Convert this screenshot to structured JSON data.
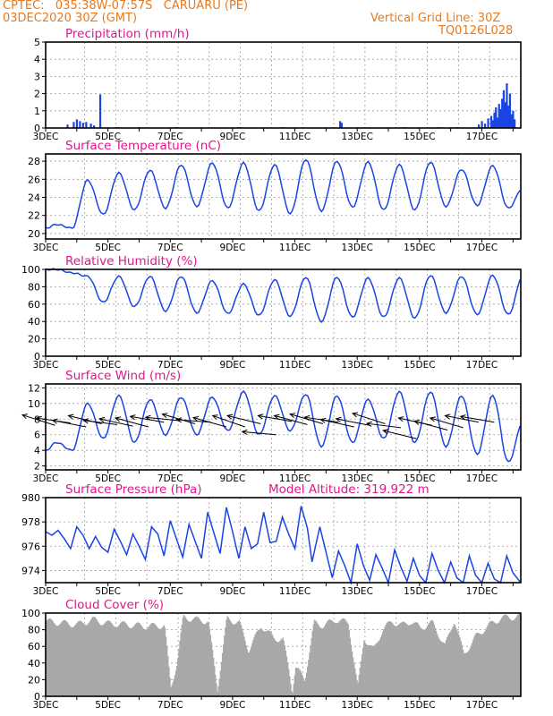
{
  "header": {
    "line1": "CPTEC:   035:38W-07:57S   CARUARU (PE)",
    "line2": "03DEC2020 30Z (GMT)",
    "right1": "Vertical Grid Line: 30Z",
    "right2": "TQ0126L028"
  },
  "colors": {
    "header": "#e8791c",
    "title": "#e0178c",
    "series": "#1a44e6",
    "cloud": "#a8a8a8",
    "wind": "#000000"
  },
  "x_ticks": [
    "3DEC",
    "5DEC",
    "7DEC",
    "9DEC",
    "11DEC",
    "13DEC",
    "15DEC",
    "17DEC"
  ],
  "chart_data": [
    {
      "type": "bar",
      "title": "Precipitation (mm/h)",
      "ylim": [
        0,
        5
      ],
      "yticks": [
        0,
        1,
        2,
        3,
        4,
        5
      ],
      "x_range_days": [
        3.0,
        18.25
      ],
      "bars": [
        [
          3.7,
          0.2
        ],
        [
          3.9,
          0.35
        ],
        [
          4.0,
          0.5
        ],
        [
          4.1,
          0.4
        ],
        [
          4.2,
          0.3
        ],
        [
          4.3,
          0.35
        ],
        [
          4.45,
          0.25
        ],
        [
          4.55,
          0.15
        ],
        [
          4.75,
          1.95
        ],
        [
          5.3,
          0.05
        ],
        [
          6.0,
          0.05
        ],
        [
          7.2,
          0.05
        ],
        [
          9.2,
          0.05
        ],
        [
          10.6,
          0.05
        ],
        [
          12.45,
          0.4
        ],
        [
          12.5,
          0.3
        ],
        [
          14.5,
          0.05
        ],
        [
          15.6,
          0.05
        ],
        [
          16.2,
          0.05
        ],
        [
          16.9,
          0.2
        ],
        [
          17.0,
          0.4
        ],
        [
          17.1,
          0.25
        ],
        [
          17.2,
          0.55
        ],
        [
          17.3,
          0.7
        ],
        [
          17.35,
          0.45
        ],
        [
          17.4,
          0.9
        ],
        [
          17.45,
          1.2
        ],
        [
          17.5,
          0.6
        ],
        [
          17.55,
          1.4
        ],
        [
          17.6,
          1.1
        ],
        [
          17.65,
          1.7
        ],
        [
          17.7,
          2.2
        ],
        [
          17.75,
          1.5
        ],
        [
          17.8,
          2.6
        ],
        [
          17.85,
          1.3
        ],
        [
          17.9,
          2.0
        ],
        [
          17.95,
          0.8
        ],
        [
          18.0,
          1.0
        ],
        [
          18.05,
          0.5
        ]
      ]
    },
    {
      "type": "line",
      "title": "Surface Temperature (nC)",
      "ylim": [
        19.4,
        28.8
      ],
      "yticks": [
        20,
        22,
        24,
        26,
        28
      ],
      "x_range_days": [
        3.0,
        18.25
      ],
      "start_value": 20.6,
      "days": [
        3,
        4,
        5,
        6,
        7,
        8,
        9,
        10,
        11,
        12,
        13,
        14,
        15,
        16,
        17,
        18
      ],
      "max": [
        21.0,
        25.9,
        26.7,
        27.0,
        27.6,
        27.8,
        27.8,
        27.6,
        28.2,
        28.0,
        27.9,
        27.6,
        27.9,
        27.1,
        27.5,
        25.2
      ],
      "min": [
        20.6,
        22.1,
        22.6,
        22.8,
        23.0,
        22.8,
        22.5,
        22.2,
        22.5,
        22.9,
        22.6,
        22.6,
        23.0,
        23.1,
        22.8,
        22.7
      ]
    },
    {
      "type": "line",
      "title": "Relative Humidity (%)",
      "ylim": [
        0,
        100
      ],
      "yticks": [
        0,
        20,
        40,
        60,
        80,
        100
      ],
      "x_range_days": [
        3.0,
        18.25
      ],
      "start_value": 100,
      "days": [
        3,
        4,
        5,
        6,
        7,
        8,
        9,
        10,
        11,
        12,
        13,
        14,
        15,
        16,
        17,
        18
      ],
      "max": [
        100,
        92,
        92,
        92,
        92,
        87,
        83,
        88,
        91,
        91,
        90,
        90,
        93,
        92,
        93,
        96
      ],
      "min": [
        96,
        62,
        57,
        52,
        50,
        49,
        47,
        46,
        40,
        45,
        45,
        44,
        50,
        48,
        48,
        67
      ]
    },
    {
      "type": "line",
      "title": "Surface Wind (m/s)",
      "ylim": [
        1.5,
        12.5
      ],
      "yticks": [
        2,
        4,
        6,
        8,
        10,
        12
      ],
      "x_range_days": [
        3.0,
        18.25
      ],
      "start_value": 4.0,
      "days": [
        3,
        4,
        5,
        6,
        7,
        8,
        9,
        10,
        11,
        12,
        13,
        14,
        15,
        16,
        17,
        18
      ],
      "max": [
        5.0,
        10.0,
        11.0,
        10.5,
        10.8,
        10.8,
        11.5,
        11.0,
        11.2,
        11.0,
        10.5,
        11.5,
        11.5,
        11.0,
        11.0,
        8.0
      ],
      "min": [
        4.0,
        5.5,
        5.0,
        6.0,
        6.0,
        6.5,
        6.0,
        6.5,
        4.5,
        5.0,
        5.5,
        5.0,
        4.5,
        3.5,
        2.5,
        5.5
      ],
      "wind_arrows": [
        [
          3.3,
          7.2,
          -110
        ],
        [
          3.8,
          7.5,
          -40
        ],
        [
          4.3,
          7.0,
          -60
        ],
        [
          4.8,
          7.4,
          -80
        ],
        [
          5.3,
          7.3,
          -30
        ],
        [
          5.8,
          7.1,
          -70
        ],
        [
          6.3,
          7.0,
          -90
        ],
        [
          6.8,
          7.6,
          -50
        ],
        [
          7.3,
          7.8,
          -20
        ],
        [
          7.8,
          7.4,
          -100
        ],
        [
          8.3,
          7.6,
          -10
        ],
        [
          8.8,
          7.0,
          -95
        ],
        [
          9.4,
          7.0,
          -120
        ],
        [
          9.9,
          7.4,
          -80
        ],
        [
          10.4,
          6.0,
          -15
        ],
        [
          10.9,
          7.7,
          -50
        ],
        [
          11.4,
          7.3,
          -90
        ],
        [
          11.9,
          7.4,
          -100
        ],
        [
          12.4,
          7.6,
          -40
        ],
        [
          12.9,
          7.0,
          -70
        ],
        [
          13.4,
          7.2,
          -60
        ],
        [
          13.9,
          7.4,
          -110
        ],
        [
          14.4,
          6.9,
          -30
        ],
        [
          14.9,
          5.5,
          -80
        ],
        [
          15.4,
          7.2,
          -70
        ],
        [
          15.9,
          6.6,
          -90
        ],
        [
          16.4,
          6.9,
          -100
        ],
        [
          16.9,
          7.6,
          -60
        ],
        [
          17.4,
          7.6,
          -50
        ]
      ]
    },
    {
      "type": "line",
      "title": "Surface Pressure (hPa)",
      "annotation": "Model Altitude: 319.922  m",
      "ylim": [
        973.0,
        980.0
      ],
      "yticks": [
        974,
        976,
        978,
        980
      ],
      "x_range_days": [
        3.0,
        18.25
      ],
      "points": [
        [
          3.0,
          977.2
        ],
        [
          3.2,
          976.9
        ],
        [
          3.4,
          977.3
        ],
        [
          3.6,
          976.6
        ],
        [
          3.8,
          975.8
        ],
        [
          4.0,
          977.6
        ],
        [
          4.2,
          976.9
        ],
        [
          4.4,
          975.8
        ],
        [
          4.6,
          976.8
        ],
        [
          4.8,
          975.9
        ],
        [
          5.0,
          975.5
        ],
        [
          5.2,
          977.4
        ],
        [
          5.4,
          976.4
        ],
        [
          5.6,
          975.3
        ],
        [
          5.8,
          977.0
        ],
        [
          6.0,
          976.0
        ],
        [
          6.2,
          974.9
        ],
        [
          6.4,
          977.6
        ],
        [
          6.6,
          977.0
        ],
        [
          6.8,
          975.2
        ],
        [
          7.0,
          978.1
        ],
        [
          7.2,
          976.6
        ],
        [
          7.4,
          975.1
        ],
        [
          7.6,
          977.8
        ],
        [
          7.8,
          976.4
        ],
        [
          8.0,
          975.0
        ],
        [
          8.2,
          978.8
        ],
        [
          8.4,
          977.1
        ],
        [
          8.6,
          975.4
        ],
        [
          8.8,
          979.2
        ],
        [
          9.0,
          977.2
        ],
        [
          9.2,
          975.0
        ],
        [
          9.4,
          977.6
        ],
        [
          9.6,
          975.8
        ],
        [
          9.8,
          976.2
        ],
        [
          10.0,
          978.8
        ],
        [
          10.2,
          976.3
        ],
        [
          10.4,
          976.4
        ],
        [
          10.6,
          978.4
        ],
        [
          10.8,
          977.0
        ],
        [
          11.0,
          975.8
        ],
        [
          11.2,
          979.3
        ],
        [
          11.4,
          977.5
        ],
        [
          11.55,
          974.7
        ],
        [
          11.8,
          977.6
        ],
        [
          12.0,
          975.5
        ],
        [
          12.2,
          973.4
        ],
        [
          12.4,
          975.6
        ],
        [
          12.6,
          974.4
        ],
        [
          12.8,
          973.0
        ],
        [
          13.0,
          976.2
        ],
        [
          13.2,
          974.4
        ],
        [
          13.4,
          973.2
        ],
        [
          13.6,
          975.3
        ],
        [
          13.8,
          974.2
        ],
        [
          14.0,
          973.0
        ],
        [
          14.2,
          975.7
        ],
        [
          14.4,
          974.3
        ],
        [
          14.6,
          973.1
        ],
        [
          14.8,
          975.0
        ],
        [
          15.0,
          973.6
        ],
        [
          15.2,
          973.0
        ],
        [
          15.4,
          975.4
        ],
        [
          15.6,
          974.0
        ],
        [
          15.8,
          973.0
        ],
        [
          16.0,
          974.7
        ],
        [
          16.2,
          973.4
        ],
        [
          16.4,
          973.0
        ],
        [
          16.6,
          975.2
        ],
        [
          16.8,
          973.6
        ],
        [
          17.0,
          973.0
        ],
        [
          17.2,
          974.6
        ],
        [
          17.4,
          973.3
        ],
        [
          17.6,
          973.0
        ],
        [
          17.8,
          975.2
        ],
        [
          18.0,
          973.8
        ],
        [
          18.25,
          973.0
        ]
      ]
    },
    {
      "type": "bar",
      "title": "Cloud Cover (%)",
      "ylim": [
        0,
        100
      ],
      "yticks": [
        0,
        20,
        40,
        60,
        80,
        100
      ],
      "x_range_days": [
        3.0,
        18.25
      ],
      "profile": [
        [
          3.0,
          90
        ],
        [
          3.5,
          88
        ],
        [
          4.0,
          86
        ],
        [
          4.5,
          92
        ],
        [
          5.0,
          87
        ],
        [
          5.6,
          86
        ],
        [
          6.2,
          84
        ],
        [
          6.8,
          85
        ],
        [
          7.0,
          10
        ],
        [
          7.2,
          40
        ],
        [
          7.4,
          95
        ],
        [
          7.8,
          92
        ],
        [
          8.2,
          90
        ],
        [
          8.5,
          8
        ],
        [
          8.8,
          93
        ],
        [
          9.2,
          88
        ],
        [
          9.5,
          55
        ],
        [
          9.9,
          85
        ],
        [
          10.3,
          70
        ],
        [
          10.6,
          68
        ],
        [
          10.8,
          30
        ],
        [
          10.9,
          5
        ],
        [
          11.0,
          35
        ],
        [
          11.3,
          20
        ],
        [
          11.6,
          88
        ],
        [
          11.9,
          85
        ],
        [
          12.3,
          92
        ],
        [
          12.7,
          88
        ],
        [
          13.0,
          10
        ],
        [
          13.2,
          70
        ],
        [
          13.5,
          55
        ],
        [
          13.8,
          80
        ],
        [
          14.1,
          90
        ],
        [
          14.4,
          85
        ],
        [
          14.7,
          90
        ],
        [
          15.0,
          82
        ],
        [
          15.4,
          88
        ],
        [
          15.8,
          60
        ],
        [
          16.1,
          92
        ],
        [
          16.4,
          50
        ],
        [
          16.8,
          72
        ],
        [
          17.2,
          85
        ],
        [
          17.6,
          94
        ],
        [
          18.0,
          95
        ],
        [
          18.25,
          96
        ]
      ]
    }
  ]
}
